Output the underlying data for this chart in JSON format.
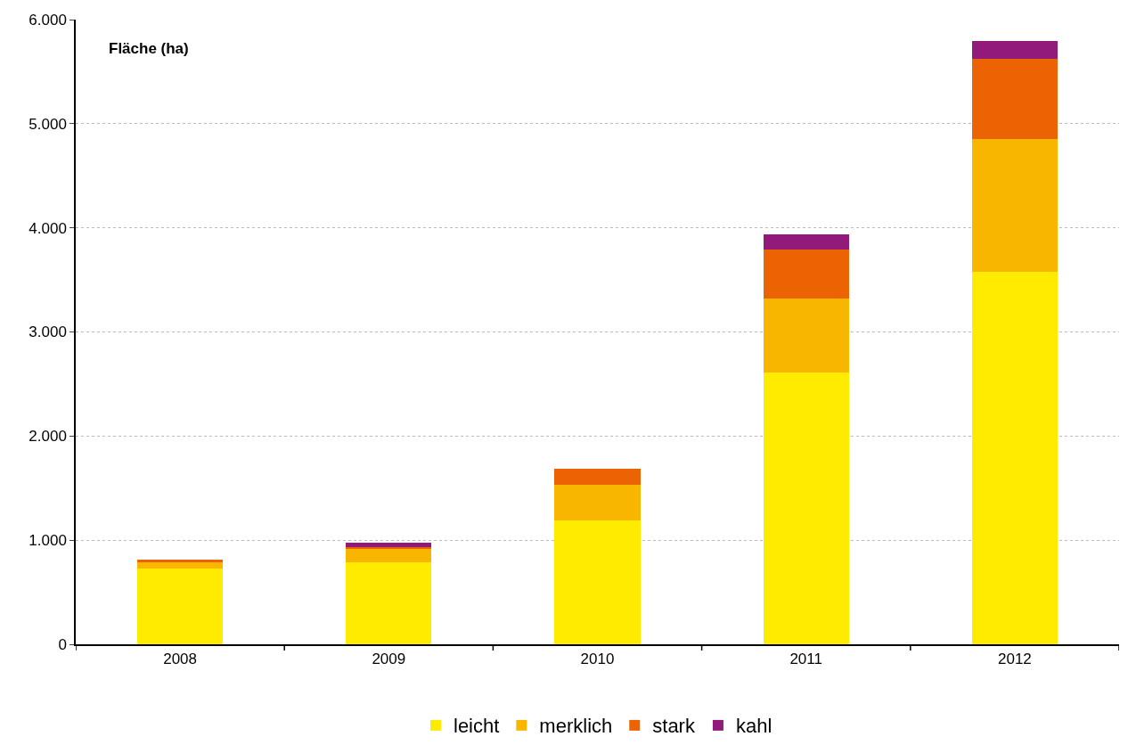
{
  "chart_data": {
    "type": "bar",
    "stacked": true,
    "ylabel": "Fläche (ha)",
    "categories": [
      "2008",
      "2009",
      "2010",
      "2011",
      "2012"
    ],
    "series": [
      {
        "name": "leicht",
        "color": "#ffeb00",
        "values": [
          730,
          790,
          1190,
          2610,
          3575
        ]
      },
      {
        "name": "merklich",
        "color": "#f9b600",
        "values": [
          60,
          130,
          340,
          710,
          1275
        ]
      },
      {
        "name": "stark",
        "color": "#ec6304",
        "values": [
          25,
          15,
          155,
          470,
          775
        ]
      },
      {
        "name": "kahl",
        "color": "#921a7a",
        "values": [
          0,
          45,
          0,
          150,
          170
        ]
      }
    ],
    "ylim": [
      0,
      6000
    ],
    "yticks": [
      {
        "value": 0,
        "label": "0"
      },
      {
        "value": 1000,
        "label": "1.000"
      },
      {
        "value": 2000,
        "label": "2.000"
      },
      {
        "value": 3000,
        "label": "3.000"
      },
      {
        "value": 4000,
        "label": "4.000"
      },
      {
        "value": 5000,
        "label": "5.000"
      },
      {
        "value": 6000,
        "label": "6.000"
      }
    ],
    "grid": "y",
    "legend": "bottom"
  }
}
